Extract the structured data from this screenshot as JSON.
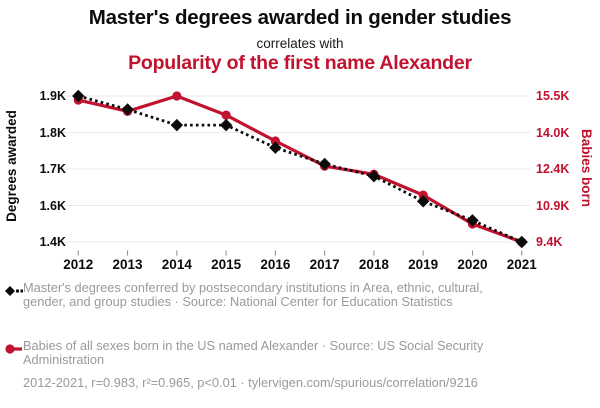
{
  "header": {
    "title": "Master's degrees awarded in gender studies",
    "connector": "correlates with",
    "subtitle": "Popularity of the first name Alexander"
  },
  "colors": {
    "accent_red": "#c1122f",
    "series_black": "#0b0b0b",
    "grid": "#e9e9e9",
    "tick_mark": "#888888",
    "legend_gray": "#9a9a9a"
  },
  "chart_data": {
    "type": "line",
    "x": [
      2012,
      2013,
      2014,
      2015,
      2016,
      2017,
      2018,
      2019,
      2020,
      2021
    ],
    "x_ticks": [
      "2012",
      "2013",
      "2014",
      "2015",
      "2016",
      "2017",
      "2018",
      "2019",
      "2020",
      "2021"
    ],
    "series": [
      {
        "name": "Master's degrees conferred by postsecondary institutions in Area, ethnic, cultural, gender, and group studies",
        "axis": "left",
        "color": "#0b0b0b",
        "marker": "diamond",
        "line_style": "dotted",
        "values": [
          1907,
          1864,
          1814,
          1814,
          1742,
          1690,
          1651,
          1571,
          1510,
          1441
        ]
      },
      {
        "name": "Babies of all sexes born in the US named Alexander",
        "axis": "right",
        "color": "#c1122f",
        "marker": "circle",
        "line_style": "solid",
        "values": [
          15330,
          14860,
          15500,
          14700,
          13620,
          12570,
          12230,
          11360,
          10150,
          9400
        ]
      }
    ],
    "y_left": {
      "label": "Degrees awarded",
      "ticks": [
        "1.9K",
        "1.8K",
        "1.7K",
        "1.6K",
        "1.4K"
      ],
      "range": [
        1441,
        1907
      ]
    },
    "y_right": {
      "label": "Babies born",
      "ticks": [
        "15.5K",
        "14.0K",
        "12.4K",
        "10.9K",
        "9.4K"
      ],
      "range": [
        9400,
        15500
      ]
    },
    "grid": true,
    "legend_position": "bottom"
  },
  "legend": {
    "items": [
      {
        "label": "Master's degrees conferred by postsecondary institutions in Area, ethnic, cultural, gender, and group studies · Source: National Center for Education Statistics"
      },
      {
        "label": "Babies of all sexes born in the US named Alexander · Source: US Social Security Administration"
      }
    ]
  },
  "footer": {
    "text": "2012-2021, r=0.983, r²=0.965, p<0.01 · tylervigen.com/spurious/correlation/9216"
  }
}
